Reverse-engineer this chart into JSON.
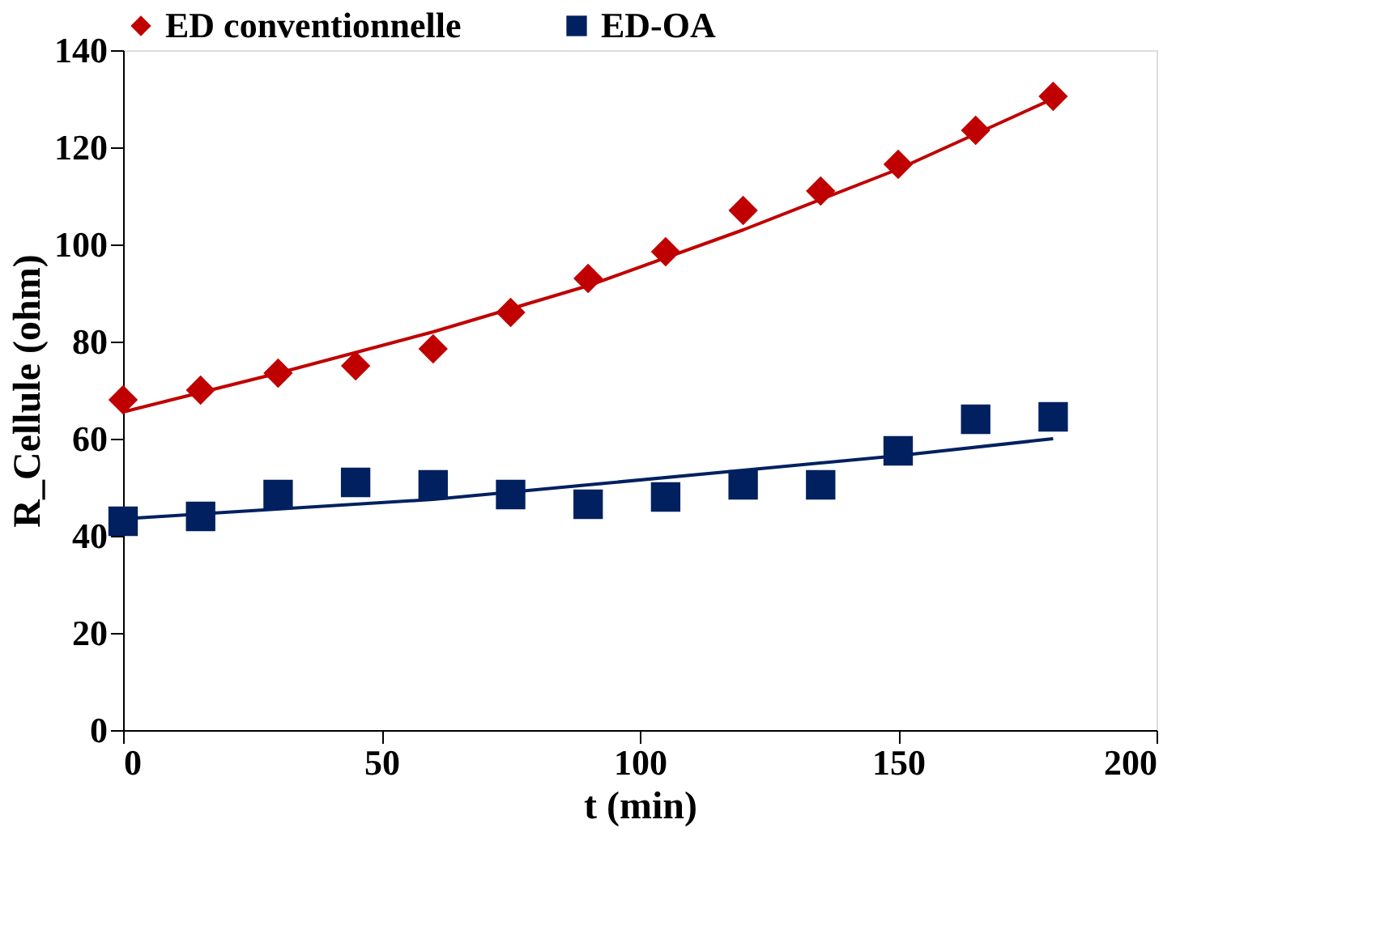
{
  "chart_data": {
    "type": "scatter",
    "xlabel": "t (min)",
    "ylabel": "R_Cellule (ohm)",
    "xlim": [
      0,
      200
    ],
    "xticks": [
      0,
      50,
      100,
      150,
      200
    ],
    "ylim": [
      0,
      140
    ],
    "yticks": [
      0,
      20,
      40,
      60,
      80,
      100,
      120,
      140
    ],
    "grid": false,
    "legend": "top",
    "series": [
      {
        "name": "ED conventionnelle",
        "color": "#c00000",
        "marker": "diamond",
        "x": [
          0,
          15,
          30,
          45,
          60,
          75,
          90,
          105,
          120,
          135,
          150,
          165,
          180
        ],
        "values": [
          68,
          70,
          73.5,
          75,
          78.5,
          86,
          93,
          98.5,
          107,
          111,
          116.5,
          123.5,
          130.5
        ]
      },
      {
        "name": "ED-OA",
        "color": "#002060",
        "marker": "square",
        "x": [
          0,
          15,
          30,
          45,
          60,
          75,
          90,
          105,
          120,
          135,
          150,
          165,
          180
        ],
        "values": [
          43,
          44,
          48.5,
          51,
          50.5,
          48.5,
          46.5,
          48,
          50.5,
          50.5,
          57.5,
          64,
          64.5
        ]
      },
      {
        "type": "line",
        "color": "#c00000",
        "marker": "none",
        "x": [
          0,
          30,
          60,
          90,
          120,
          150,
          180
        ],
        "values": [
          65.5,
          73.5,
          82,
          91.5,
          103,
          115.5,
          130
        ]
      },
      {
        "type": "line",
        "color": "#002060",
        "marker": "none",
        "x": [
          0,
          60,
          90,
          120,
          150,
          180
        ],
        "values": [
          43.5,
          47.5,
          50.5,
          53.5,
          56.5,
          60
        ]
      }
    ]
  }
}
